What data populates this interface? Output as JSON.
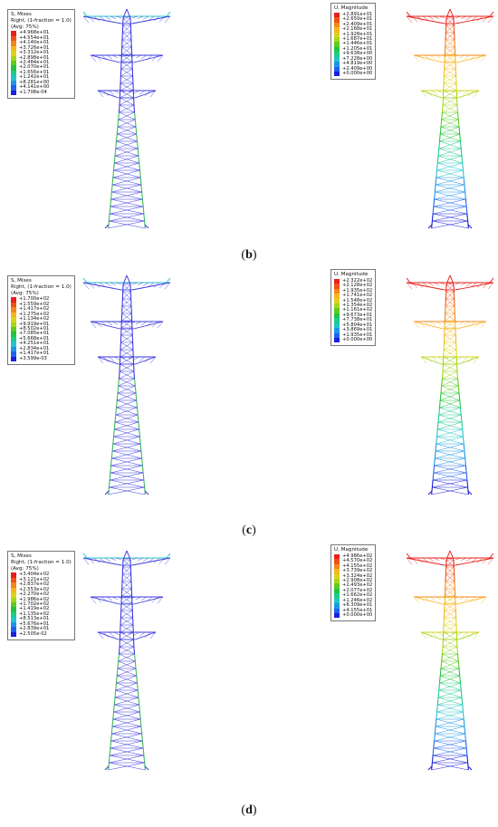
{
  "colors": {
    "bands_high_to_low": [
      "#e8201a",
      "#ee5216",
      "#f3861c",
      "#f7b61f",
      "#dcd21d",
      "#a7d51c",
      "#5ccc1f",
      "#22c43b",
      "#1ecb8a",
      "#22c4c9",
      "#1e96e6",
      "#1e63ee",
      "#1b1fdc"
    ],
    "tower_blue": "#3a3ae0"
  },
  "rows": [
    {
      "caption_left": "(",
      "caption_letter": "b",
      "caption_right": ")",
      "stress": {
        "title_lines": [
          "S, Mises",
          "Right, (1-fraction = 1.0)",
          "(Avg: 75%)"
        ],
        "values": [
          "+4.968e+01",
          "+4.554e+01",
          "+4.140e+01",
          "+3.726e+01",
          "+3.312e+01",
          "+2.898e+01",
          "+2.484e+01",
          "+2.070e+01",
          "+1.656e+01",
          "+1.242e+01",
          "+8.281e+00",
          "+4.141e+00",
          "+1.708e-04"
        ]
      },
      "displacement": {
        "title_lines": [
          "U, Magnitude"
        ],
        "values": [
          "+2.891e+01",
          "+2.650e+01",
          "+2.409e+01",
          "+2.168e+01",
          "+1.928e+01",
          "+1.687e+01",
          "+1.446e+01",
          "+1.205e+01",
          "+9.638e+00",
          "+7.228e+00",
          "+4.819e+00",
          "+2.409e+00",
          "+0.000e+00"
        ]
      }
    },
    {
      "caption_left": "(",
      "caption_letter": "c",
      "caption_right": ")",
      "stress": {
        "title_lines": [
          "S, Mises",
          "Right, (1-fraction = 1.0)",
          "(Avg: 75%)"
        ],
        "values": [
          "+1.700e+02",
          "+1.559e+02",
          "+1.417e+02",
          "+1.275e+02",
          "+1.134e+02",
          "+9.919e+01",
          "+8.502e+01",
          "+7.085e+01",
          "+5.668e+01",
          "+4.251e+01",
          "+2.834e+01",
          "+1.417e+01",
          "+3.599e-03"
        ]
      },
      "displacement": {
        "title_lines": [
          "U, Magnitude"
        ],
        "values": [
          "+2.322e+02",
          "+2.128e+02",
          "+1.935e+02",
          "+1.741e+02",
          "+1.548e+02",
          "+1.354e+02",
          "+1.161e+02",
          "+9.673e+01",
          "+7.738e+01",
          "+5.804e+01",
          "+3.869e+01",
          "+1.935e+01",
          "+0.000e+00"
        ]
      }
    },
    {
      "caption_left": "(",
      "caption_letter": "d",
      "caption_right": ")",
      "stress": {
        "title_lines": [
          "S, Mises",
          "Right, (1-fraction = 1.0)",
          "(Avg: 75%)"
        ],
        "values": [
          "+3.404e+02",
          "+3.121e+02",
          "+2.837e+02",
          "+2.553e+02",
          "+2.270e+02",
          "+1.986e+02",
          "+1.702e+02",
          "+1.419e+02",
          "+1.135e+02",
          "+8.513e+01",
          "+5.676e+01",
          "+2.839e+01",
          "+2.505e-02"
        ]
      },
      "displacement": {
        "title_lines": [
          "U, Magnitude"
        ],
        "values": [
          "+4.986e+02",
          "+4.570e+02",
          "+4.155e+02",
          "+3.739e+02",
          "+3.324e+02",
          "+2.908e+02",
          "+2.493e+02",
          "+2.077e+02",
          "+1.662e+02",
          "+1.246e+02",
          "+8.309e+01",
          "+4.155e+01",
          "+0.000e+00"
        ]
      }
    }
  ]
}
